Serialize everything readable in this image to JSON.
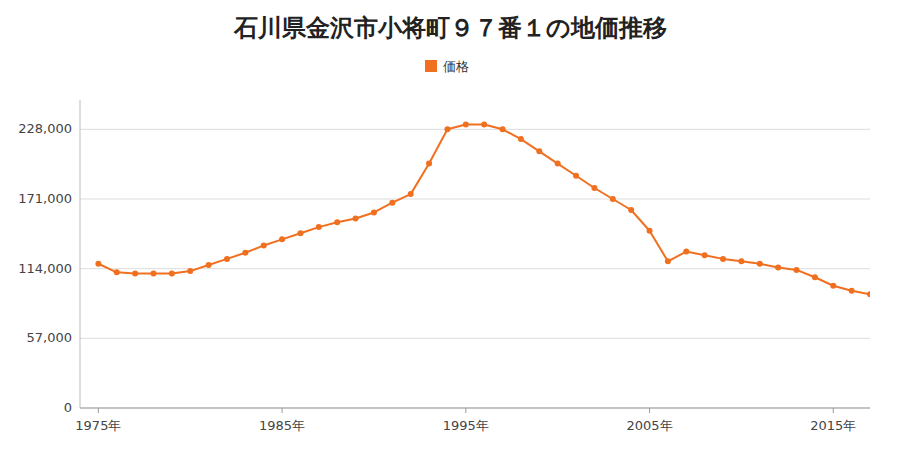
{
  "chart_data": {
    "type": "line",
    "title": "石川県金沢市小将町９７番１の地価推移",
    "x": [
      1975,
      1976,
      1977,
      1978,
      1979,
      1980,
      1981,
      1982,
      1983,
      1984,
      1985,
      1986,
      1987,
      1988,
      1989,
      1990,
      1991,
      1992,
      1993,
      1994,
      1995,
      1996,
      1997,
      1998,
      1999,
      2000,
      2001,
      2002,
      2003,
      2004,
      2005,
      2006,
      2007,
      2008,
      2009,
      2010,
      2011,
      2012,
      2013,
      2014,
      2015,
      2016,
      2017
    ],
    "series": [
      {
        "name": "価格",
        "color": "#f07020",
        "marker": "circle",
        "values": [
          118000,
          111000,
          110000,
          110000,
          110000,
          112000,
          117000,
          122000,
          127000,
          133000,
          138000,
          143000,
          148000,
          152000,
          155000,
          160000,
          168000,
          175000,
          200000,
          228000,
          232000,
          232000,
          228000,
          220000,
          210000,
          200000,
          190000,
          180000,
          171000,
          162000,
          145000,
          120000,
          128000,
          125000,
          122000,
          120000,
          118000,
          115000,
          113000,
          107000,
          100000,
          96000,
          93000
        ]
      }
    ],
    "xlim": [
      1974,
      2017
    ],
    "xticks": [
      {
        "value": 1975,
        "label": "1975年"
      },
      {
        "value": 1985,
        "label": "1985年"
      },
      {
        "value": 1995,
        "label": "1995年"
      },
      {
        "value": 2005,
        "label": "2005年"
      },
      {
        "value": 2015,
        "label": "2015年"
      }
    ],
    "ylim": [
      0,
      252000
    ],
    "yticks": [
      0,
      {
        "value": 57000,
        "label": "57,000"
      },
      {
        "value": 114000,
        "label": "114,000"
      },
      {
        "value": 171000,
        "label": "171,000"
      },
      {
        "value": 228000,
        "label": "228,000"
      }
    ],
    "grid": true,
    "legend": "top"
  }
}
